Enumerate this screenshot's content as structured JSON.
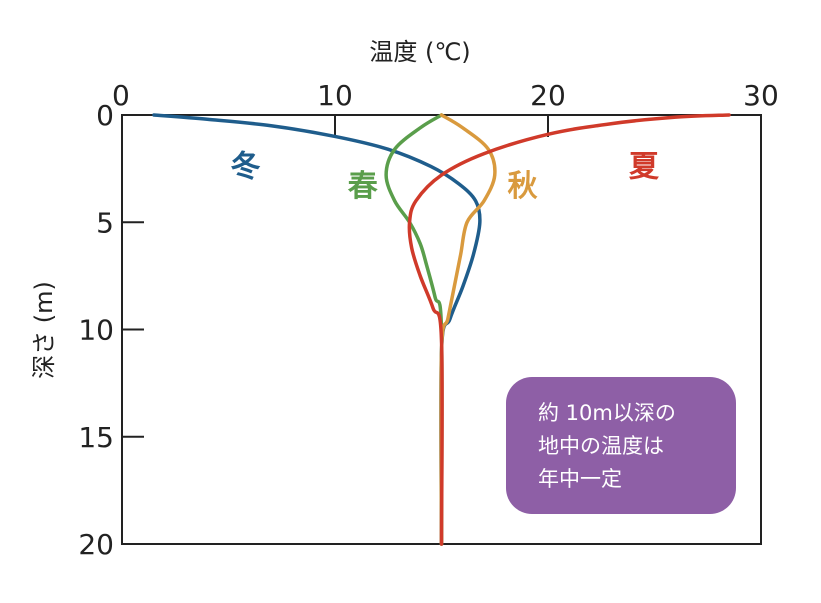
{
  "chart_data": {
    "type": "line",
    "xlabel": "温度 (℃)",
    "ylabel": "深さ (m)",
    "xlim": [
      0,
      30
    ],
    "ylim": [
      0,
      20
    ],
    "y_inverted": true,
    "x_axis_position": "top",
    "x_ticks": [
      "0",
      "10",
      "20",
      "30"
    ],
    "y_ticks": [
      "0",
      "5",
      "10",
      "15",
      "20"
    ],
    "grid": false,
    "series": [
      {
        "name": "冬",
        "color": "#1f5d8c",
        "points": [
          [
            1.5,
            0
          ],
          [
            4,
            0.2
          ],
          [
            7,
            0.5
          ],
          [
            10,
            1
          ],
          [
            12.5,
            1.6
          ],
          [
            14.5,
            2.4
          ],
          [
            15.8,
            3.2
          ],
          [
            16.6,
            4
          ],
          [
            16.8,
            5
          ],
          [
            16.5,
            6.5
          ],
          [
            16,
            8
          ],
          [
            15.4,
            9.5
          ],
          [
            15,
            11
          ],
          [
            15,
            20
          ]
        ]
      },
      {
        "name": "春",
        "color": "#5a9e4b",
        "points": [
          [
            15,
            0
          ],
          [
            14,
            0.6
          ],
          [
            12.8,
            1.6
          ],
          [
            12.4,
            2.8
          ],
          [
            12.8,
            4
          ],
          [
            13.5,
            5
          ],
          [
            14,
            6
          ],
          [
            14.3,
            7
          ],
          [
            14.7,
            8.5
          ],
          [
            15,
            10
          ],
          [
            15,
            20
          ]
        ]
      },
      {
        "name": "秋",
        "color": "#d99a3e",
        "points": [
          [
            15,
            0
          ],
          [
            16,
            0.6
          ],
          [
            17.2,
            1.6
          ],
          [
            17.5,
            2.8
          ],
          [
            17,
            4
          ],
          [
            16.2,
            5
          ],
          [
            15.9,
            6.5
          ],
          [
            15.6,
            8
          ],
          [
            15.3,
            9.5
          ],
          [
            15,
            11
          ],
          [
            15,
            20
          ]
        ]
      },
      {
        "name": "夏",
        "color": "#d03a2a",
        "points": [
          [
            28.5,
            0
          ],
          [
            26,
            0.1
          ],
          [
            23,
            0.4
          ],
          [
            20,
            0.9
          ],
          [
            17,
            1.8
          ],
          [
            15,
            2.8
          ],
          [
            13.8,
            4
          ],
          [
            13.5,
            5
          ],
          [
            13.6,
            6.2
          ],
          [
            14,
            7.5
          ],
          [
            14.6,
            9
          ],
          [
            15,
            10.5
          ],
          [
            15,
            20
          ]
        ]
      }
    ],
    "series_label_positions": {
      "冬": [
        5.8,
        2.4
      ],
      "春": [
        11.3,
        3.3
      ],
      "秋": [
        18.8,
        3.3
      ],
      "夏": [
        24.5,
        2.4
      ]
    },
    "annotation": {
      "lines": [
        "約 10m以深の",
        "地中の温度は",
        "年中一定"
      ],
      "color": "#8e5fa6",
      "placement": "bottom-right"
    }
  }
}
